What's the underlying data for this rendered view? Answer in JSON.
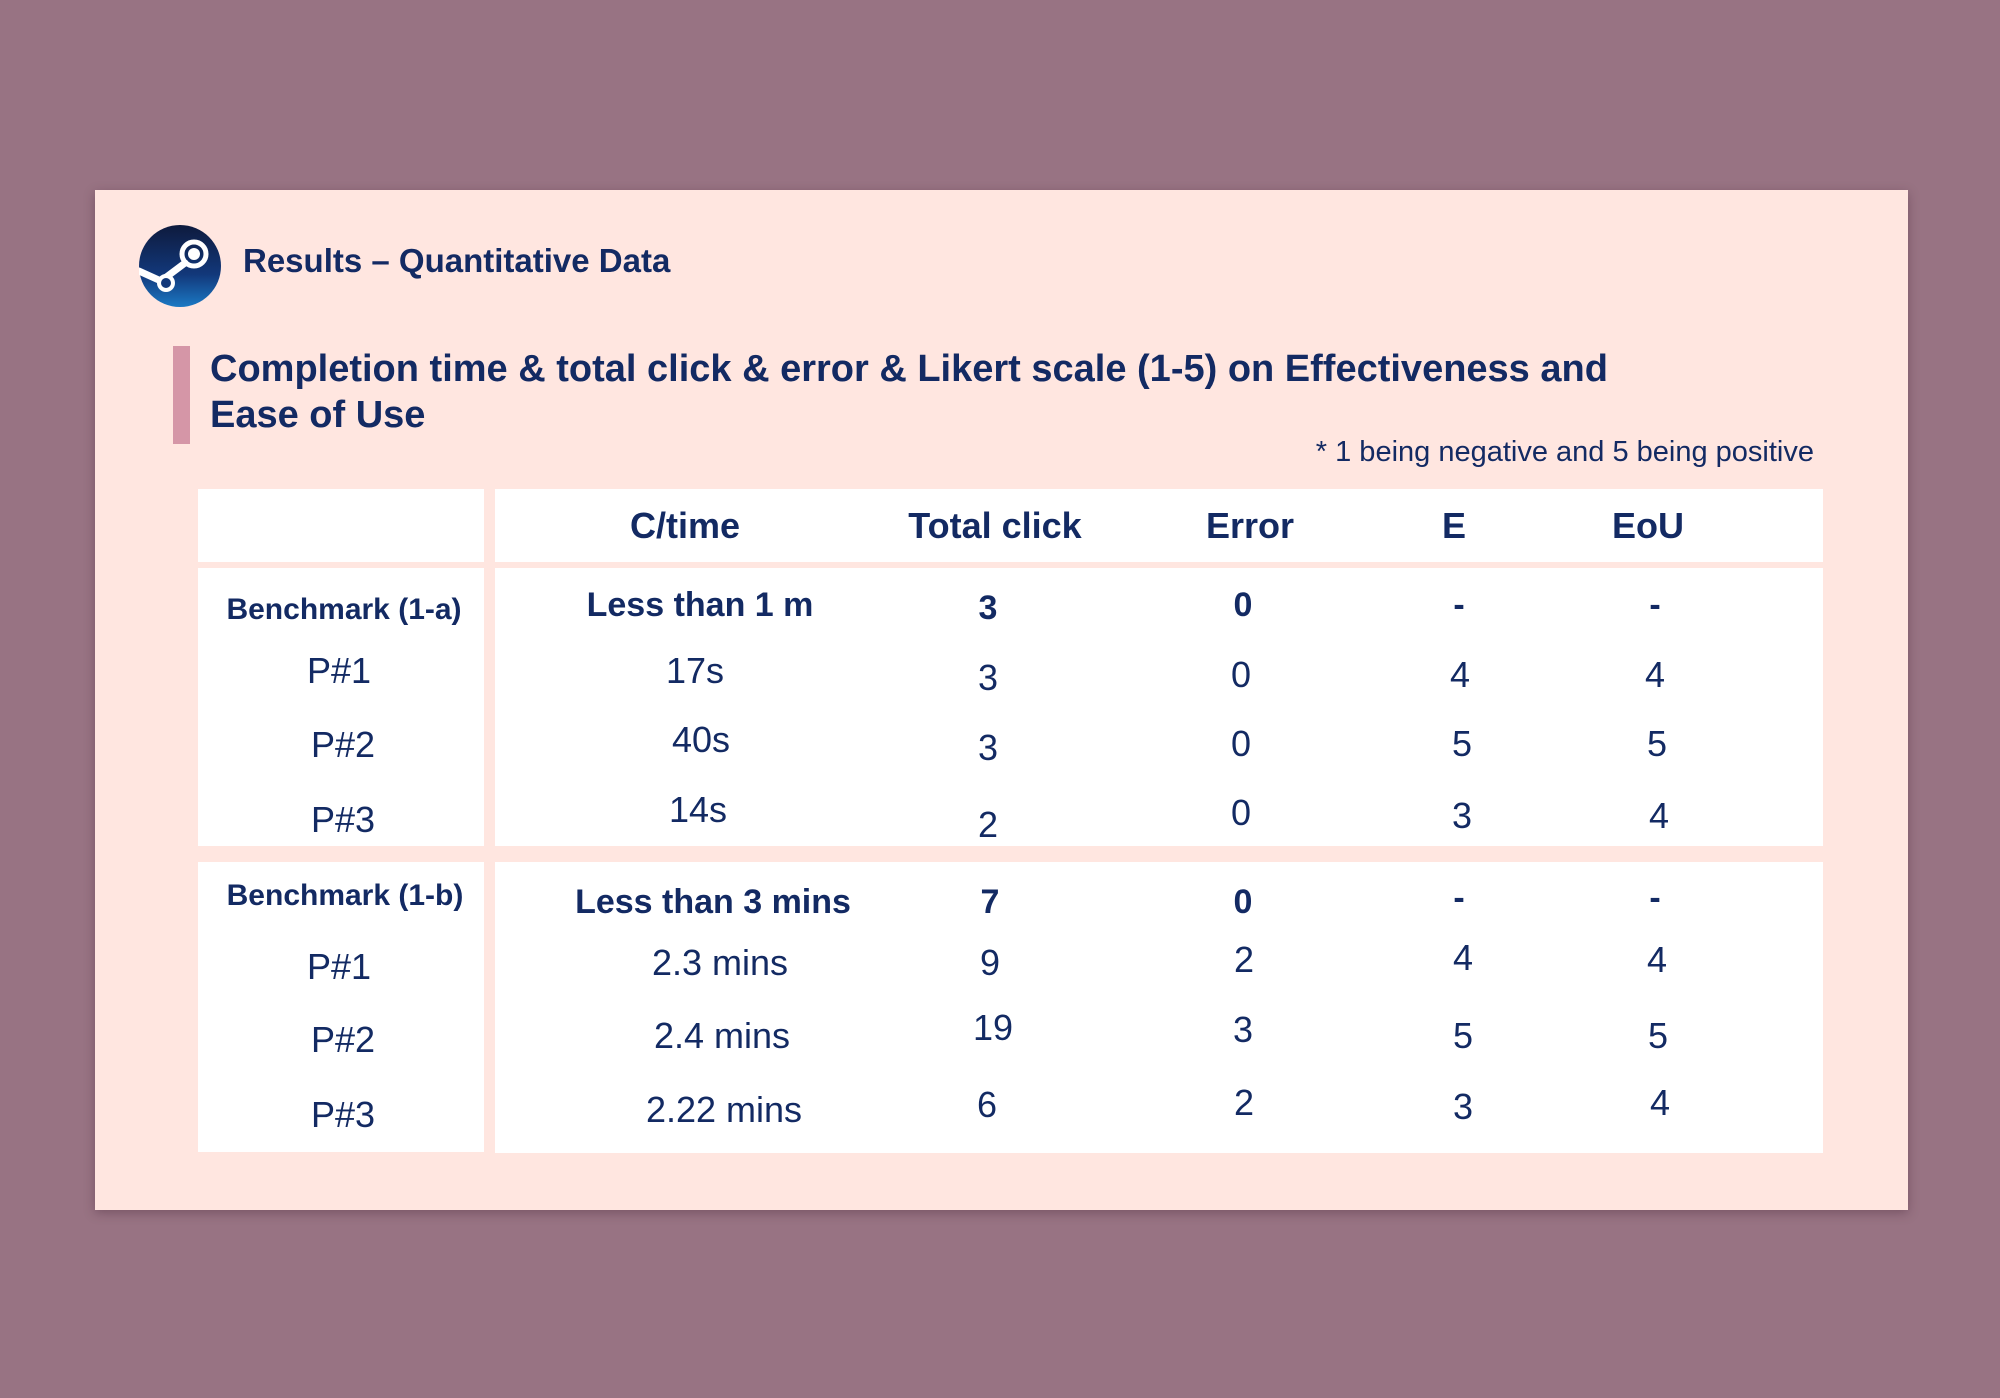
{
  "header": {
    "title": "Results – Quantitative Data",
    "logo_icon": "steam-logo-icon"
  },
  "heading": {
    "line1": "Completion time & total click & error & Likert scale (1-5) on Effectiveness and",
    "line2": "Ease of Use"
  },
  "footnote": "* 1 being negative and 5 being positive",
  "table": {
    "columns": [
      "C/time",
      "Total click",
      "Error",
      "E",
      "EoU"
    ],
    "groups": [
      {
        "label": "Benchmark (1-a)",
        "benchmark": [
          "Less than 1 m",
          "3",
          "0",
          "-",
          "-"
        ],
        "rows": [
          {
            "label": "P#1",
            "values": [
              "17s",
              "3",
              "0",
              "4",
              "4"
            ]
          },
          {
            "label": "P#2",
            "values": [
              "40s",
              "3",
              "0",
              "5",
              "5"
            ]
          },
          {
            "label": "P#3",
            "values": [
              "14s",
              "2",
              "0",
              "3",
              "4"
            ]
          }
        ]
      },
      {
        "label": "Benchmark (1-b)",
        "benchmark": [
          "Less than 3 mins",
          "7",
          "0",
          "-",
          "-"
        ],
        "rows": [
          {
            "label": "P#1",
            "values": [
              "2.3 mins",
              "9",
              "2",
              "4",
              "4"
            ]
          },
          {
            "label": "P#2",
            "values": [
              "2.4 mins",
              "19",
              "3",
              "5",
              "5"
            ]
          },
          {
            "label": "P#3",
            "values": [
              "2.22 mins",
              "6",
              "2",
              "3",
              "4"
            ]
          }
        ]
      }
    ]
  },
  "colors": {
    "background": "#987383",
    "slide": "#ffe6e0",
    "text": "#132a63",
    "accent": "#d596a7"
  }
}
